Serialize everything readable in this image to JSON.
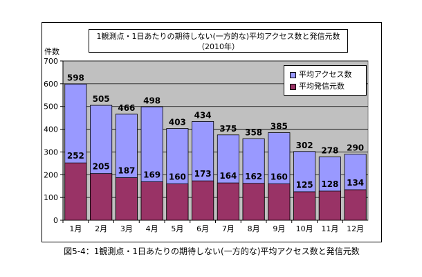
{
  "chart_data": {
    "type": "bar",
    "title_line1": "1観測点・1日あたりの期待しない(一方的な)平均アクセス数と発信元数",
    "title_line2": "（2010年）",
    "ylabel": "件数",
    "xlabel": "",
    "ylim": [
      0,
      700
    ],
    "ytick_step": 100,
    "categories": [
      "1月",
      "2月",
      "3月",
      "4月",
      "5月",
      "6月",
      "7月",
      "8月",
      "9月",
      "10月",
      "11月",
      "12月"
    ],
    "series": [
      {
        "name": "平均アクセス数",
        "color": "#9999ff",
        "values": [
          598,
          505,
          466,
          498,
          403,
          434,
          375,
          358,
          385,
          302,
          278,
          290
        ]
      },
      {
        "name": "平均発信元数",
        "color": "#993366",
        "values": [
          252,
          205,
          187,
          169,
          160,
          173,
          164,
          162,
          160,
          125,
          128,
          134
        ]
      }
    ],
    "grid": true,
    "plot_background": "#c0c0c0",
    "legend_position": "top-right"
  },
  "caption": "図5-4：1観測点・1日あたりの期待しない(一方的な)平均アクセス数と発信元数"
}
